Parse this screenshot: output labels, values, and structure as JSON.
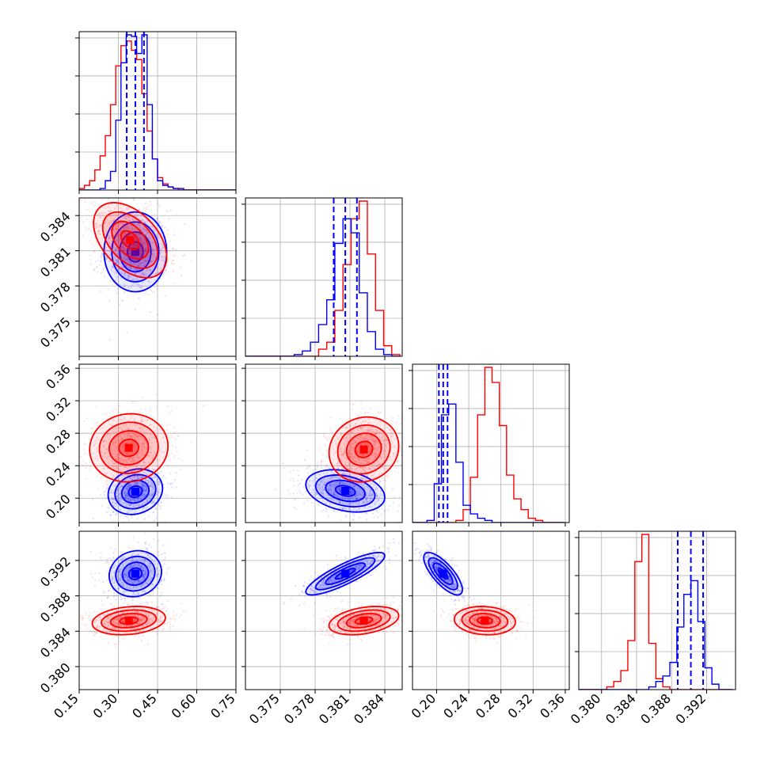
{
  "chart_data": {
    "type": "corner",
    "colors": {
      "blue": "#0000ff",
      "red": "#ff0000"
    },
    "grid": true,
    "parameters": [
      {
        "range": [
          0.15,
          0.75
        ],
        "ticks": [
          "0.15",
          "0.30",
          "0.45",
          "0.60",
          "0.75"
        ],
        "tick_values": [
          0.15,
          0.3,
          0.45,
          0.6,
          0.75
        ]
      },
      {
        "range": [
          0.372,
          0.3855
        ],
        "ticks": [
          "0.375",
          "0.378",
          "0.381",
          "0.384"
        ],
        "tick_values": [
          0.375,
          0.378,
          0.381,
          0.384
        ]
      },
      {
        "range": [
          0.17,
          0.365
        ],
        "ticks": [
          "0.20",
          "0.24",
          "0.28",
          "0.32",
          "0.36"
        ],
        "tick_values": [
          0.2,
          0.24,
          0.28,
          0.32,
          0.36
        ]
      },
      {
        "range": [
          0.3774,
          0.3953
        ],
        "ticks": [
          "0.380",
          "0.384",
          "0.388",
          "0.392"
        ],
        "tick_values": [
          0.38,
          0.384,
          0.388,
          0.392
        ]
      }
    ],
    "marginals": [
      {
        "param": 0,
        "bins": [
          0.15,
          0.17,
          0.19,
          0.21,
          0.23,
          0.25,
          0.27,
          0.29,
          0.31,
          0.33,
          0.35,
          0.37,
          0.39,
          0.41,
          0.43,
          0.45,
          0.47,
          0.49,
          0.51,
          0.53,
          0.55,
          0.57,
          0.59,
          0.61,
          0.63,
          0.65,
          0.67,
          0.69,
          0.71,
          0.73,
          0.75
        ],
        "blue": [
          0,
          0,
          0,
          0,
          1,
          6,
          12,
          45,
          82,
          100,
          99,
          88,
          100,
          55,
          20,
          6,
          3,
          2,
          1,
          1,
          0,
          0,
          0,
          0,
          0,
          0,
          0,
          0,
          0,
          0
        ],
        "red": [
          1,
          3,
          6,
          13,
          22,
          35,
          55,
          80,
          93,
          96,
          90,
          84,
          62,
          38,
          20,
          8,
          4,
          2,
          1,
          0,
          0,
          0,
          0,
          0,
          0,
          0,
          0,
          0,
          0,
          0
        ],
        "quantiles_blue": [
          0.332,
          0.365,
          0.398
        ]
      },
      {
        "param": 1,
        "bins": [
          0.372,
          0.3727,
          0.3734,
          0.3741,
          0.3748,
          0.3755,
          0.3762,
          0.3769,
          0.3776,
          0.3783,
          0.379,
          0.3797,
          0.3804,
          0.3811,
          0.3818,
          0.3825,
          0.3832,
          0.3839,
          0.3846,
          0.3853
        ],
        "blue": [
          0,
          0,
          0,
          0,
          0,
          0,
          1,
          3,
          8,
          18,
          32,
          64,
          78,
          70,
          36,
          14,
          4,
          1,
          0
        ],
        "red": [
          0,
          0,
          0,
          0,
          0,
          0,
          0,
          0,
          0,
          4,
          8,
          26,
          52,
          78,
          88,
          58,
          26,
          6,
          1
        ],
        "quantiles_blue": [
          0.3796,
          0.3806,
          0.3816
        ]
      },
      {
        "param": 2,
        "bins": [
          0.17,
          0.179,
          0.188,
          0.197,
          0.206,
          0.215,
          0.224,
          0.233,
          0.242,
          0.251,
          0.26,
          0.269,
          0.278,
          0.287,
          0.296,
          0.305,
          0.314,
          0.323,
          0.332,
          0.341,
          0.35,
          0.359
        ],
        "blue": [
          0,
          0,
          1,
          18,
          50,
          55,
          28,
          8,
          4,
          2,
          1,
          0,
          0,
          0,
          0,
          0,
          0,
          0,
          0,
          0,
          0
        ],
        "red": [
          0,
          0,
          0,
          0,
          0,
          0,
          1,
          6,
          21,
          50,
          72,
          65,
          45,
          22,
          11,
          6,
          2,
          1,
          0,
          0,
          0
        ],
        "quantiles_blue": [
          0.2028,
          0.2082,
          0.2136
        ]
      },
      {
        "param": 3,
        "bins": [
          0.3774,
          0.3782,
          0.379,
          0.3798,
          0.3806,
          0.3814,
          0.3822,
          0.383,
          0.3838,
          0.3846,
          0.3854,
          0.3862,
          0.387,
          0.3878,
          0.3886,
          0.3894,
          0.3902,
          0.391,
          0.3918,
          0.3926,
          0.3934,
          0.3942,
          0.395
        ],
        "blue": [
          0,
          0,
          0,
          0,
          0,
          0,
          0,
          0,
          0,
          0,
          1,
          3,
          5,
          10,
          23,
          35,
          40,
          25,
          8,
          2,
          0,
          0
        ],
        "red": [
          0,
          0,
          0,
          0,
          1,
          3,
          7,
          18,
          47,
          57,
          17,
          4,
          1,
          0,
          0,
          0,
          0,
          0,
          0,
          0,
          0,
          0
        ],
        "quantiles_blue": [
          0.3887,
          0.3902,
          0.3916
        ]
      }
    ],
    "pairs": [
      {
        "xparam": 0,
        "yparam": 1,
        "blue": {
          "mean": [
            0.365,
            0.3809
          ],
          "sigma": [
            0.06,
            0.0017
          ],
          "rho": 0.0
        },
        "red": {
          "mean": [
            0.345,
            0.3819
          ],
          "sigma": [
            0.07,
            0.0016
          ],
          "rho": -0.45
        }
      },
      {
        "xparam": 0,
        "yparam": 2,
        "blue": {
          "mean": [
            0.365,
            0.208
          ],
          "sigma": [
            0.052,
            0.014
          ],
          "rho": 0.15
        },
        "red": {
          "mean": [
            0.34,
            0.262
          ],
          "sigma": [
            0.075,
            0.021
          ],
          "rho": 0.05
        }
      },
      {
        "xparam": 1,
        "yparam": 2,
        "blue": {
          "mean": [
            0.3806,
            0.209
          ],
          "sigma": [
            0.0017,
            0.013
          ],
          "rho": -0.3
        },
        "red": {
          "mean": [
            0.3822,
            0.26
          ],
          "sigma": [
            0.0015,
            0.02
          ],
          "rho": 0.1
        }
      },
      {
        "xparam": 0,
        "yparam": 3,
        "blue": {
          "mean": [
            0.365,
            0.3905
          ],
          "sigma": [
            0.05,
            0.0013
          ],
          "rho": 0.1
        },
        "red": {
          "mean": [
            0.34,
            0.3852
          ],
          "sigma": [
            0.07,
            0.0008
          ],
          "rho": 0.2
        }
      },
      {
        "xparam": 1,
        "yparam": 3,
        "blue": {
          "mean": [
            0.3806,
            0.3905
          ],
          "sigma": [
            0.0017,
            0.0012
          ],
          "rho": 0.85
        },
        "red": {
          "mean": [
            0.3822,
            0.3852
          ],
          "sigma": [
            0.0015,
            0.0008
          ],
          "rho": 0.35
        }
      },
      {
        "xparam": 2,
        "yparam": 3,
        "blue": {
          "mean": [
            0.208,
            0.3905
          ],
          "sigma": [
            0.012,
            0.0012
          ],
          "rho": -0.75
        },
        "red": {
          "mean": [
            0.26,
            0.3852
          ],
          "sigma": [
            0.019,
            0.0008
          ],
          "rho": -0.1
        }
      }
    ],
    "contour_levels_sigma": [
      0.5,
      1.0,
      1.5,
      2.0
    ],
    "scatter_points_per_series": 700
  }
}
